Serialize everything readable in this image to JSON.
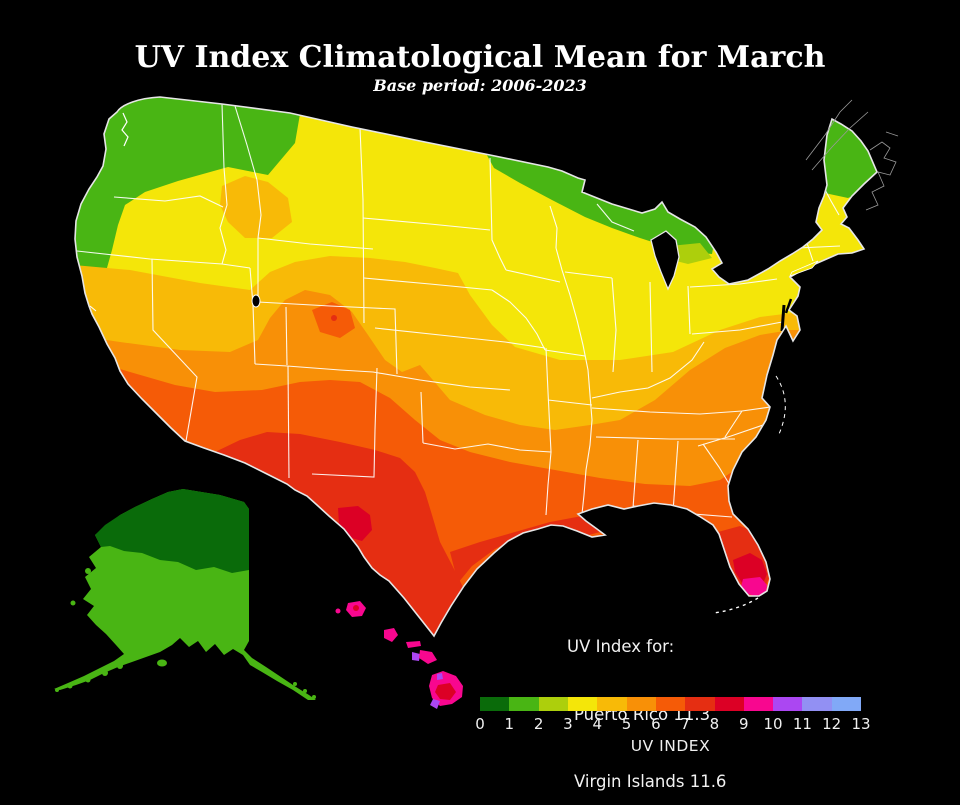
{
  "title": "UV Index Climatological Mean for March",
  "subtitle": "Base period: 2006-2023",
  "annotation": {
    "lines": [
      "UV Index for:",
      "Puerto Rico 11.3",
      "Virgin Islands 11.6"
    ]
  },
  "colorbar": {
    "label": "UV INDEX",
    "ticks": [
      "0",
      "1",
      "2",
      "3",
      "4",
      "5",
      "6",
      "7",
      "8",
      "9",
      "10",
      "11",
      "12",
      "13"
    ],
    "colors": [
      "#0a6b0a",
      "#49b514",
      "#adcf0c",
      "#f4e609",
      "#f8ba07",
      "#f89007",
      "#f55b07",
      "#e52e12",
      "#dc0025",
      "#f8078f",
      "#ab47f2",
      "#9290f3",
      "#81a9f7"
    ]
  },
  "chart_data": {
    "type": "choropleth-map",
    "title": "UV Index Climatological Mean for March",
    "subtitle": "Base period: 2006-2023",
    "region": "United States (contiguous US, Alaska, Hawaii)",
    "variable": "UV Index climatological mean",
    "legend_label": "UV INDEX",
    "scale": {
      "min": 0,
      "max": 13,
      "step": 1,
      "tick_labels": [
        0,
        1,
        2,
        3,
        4,
        5,
        6,
        7,
        8,
        9,
        10,
        11,
        12,
        13
      ]
    },
    "palette": [
      "#0a6b0a",
      "#49b514",
      "#adcf0c",
      "#f4e609",
      "#f8ba07",
      "#f89007",
      "#f55b07",
      "#e52e12",
      "#dc0025",
      "#f8078f",
      "#ab47f2",
      "#9290f3",
      "#81a9f7"
    ],
    "called_out_values": {
      "Puerto Rico": 11.3,
      "Virgin Islands": 11.6
    },
    "regions_by_uv_range": {
      "0-1": "northern Alaska",
      "1-2": "southern Alaska; Washington; northern Minnesota, Wisconsin and Michigan; Maine and northern New England",
      "3-4": "northern tier: Oregon, Montana, Dakotas, Great Lakes, Northeast",
      "4-5": "central band: central California, Nevada, Nebraska, Missouri, Ohio Valley, Virginia; Idaho/Montana Rockies",
      "5-6": "southern California, Utah, Colorado Rockies, Kansas, Oklahoma, Tennessee, North Carolina coast",
      "6-7": "Arizona, New Mexico, north Texas, Gulf-state interiors, southern Georgia, northern Florida",
      "7-8": "southeast Arizona to west Texas, south Texas, Gulf coast, central Florida",
      "8-9": "Big Bend Texas; southern Florida; parts of Hawaii",
      "9-10": "southern tip of Florida; Hawaiian islands",
      "10-11": "high-elevation spots in Hawaii"
    },
    "background_color": "#000000",
    "state_border_color": "#ffffff"
  }
}
